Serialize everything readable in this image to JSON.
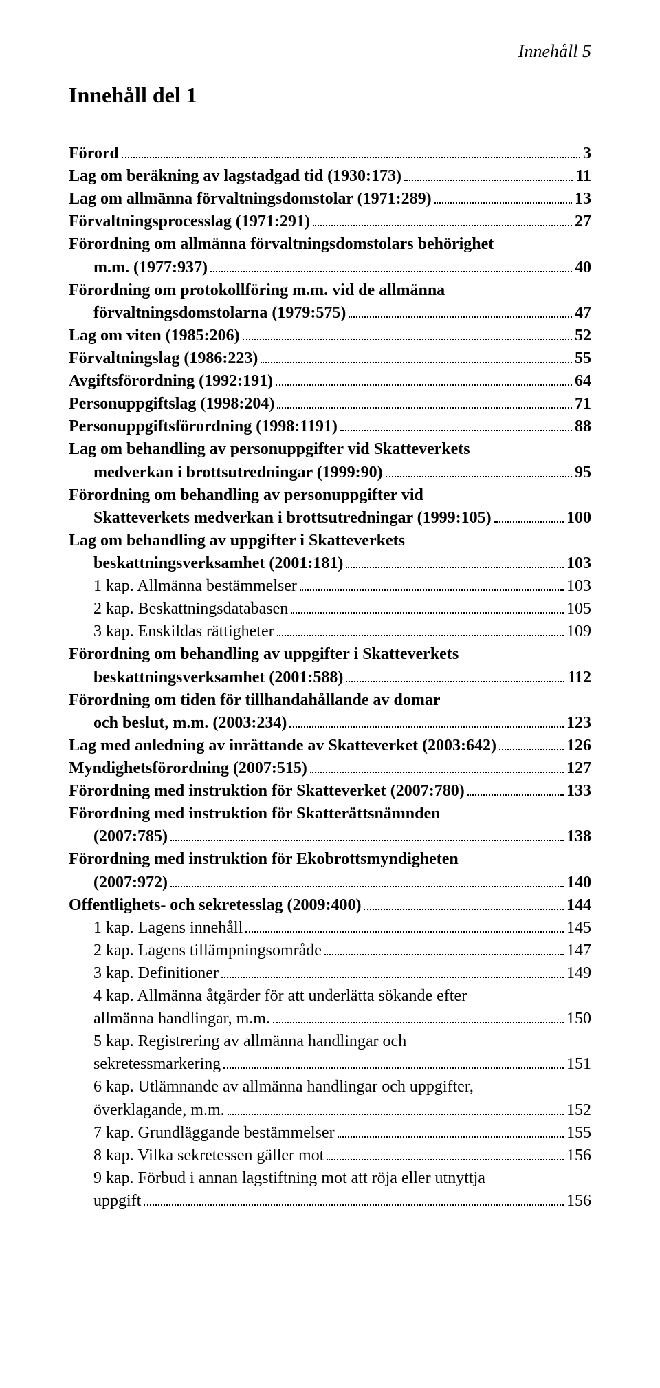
{
  "header": "Innehåll 5",
  "title": "Innehåll del 1",
  "entries": [
    {
      "label": "Förord",
      "page": "3",
      "bold": true,
      "indent": 0
    },
    {
      "label": "Lag om beräkning av lagstadgad tid (1930:173)",
      "page": "11",
      "bold": true,
      "indent": 0
    },
    {
      "label": "Lag om allmänna förvaltningsdomstolar (1971:289)",
      "page": "13",
      "bold": true,
      "indent": 0
    },
    {
      "label": "Förvaltningsprocesslag (1971:291)",
      "page": "27",
      "bold": true,
      "indent": 0
    },
    {
      "label_lines": [
        "Förordning om allmänna förvaltningsdomstolars behörighet",
        "m.m. (1977:937)"
      ],
      "page": "40",
      "bold": true,
      "indent": 0
    },
    {
      "label_lines": [
        "Förordning om protokollföring m.m. vid de allmänna",
        "förvaltningsdomstolarna (1979:575)"
      ],
      "page": "47",
      "bold": true,
      "indent": 0
    },
    {
      "label": "Lag om viten (1985:206)",
      "page": "52",
      "bold": true,
      "indent": 0
    },
    {
      "label": "Förvaltningslag (1986:223)",
      "page": "55",
      "bold": true,
      "indent": 0
    },
    {
      "label": "Avgiftsförordning (1992:191)",
      "page": "64",
      "bold": true,
      "indent": 0
    },
    {
      "label": "Personuppgiftslag (1998:204)",
      "page": "71",
      "bold": true,
      "indent": 0
    },
    {
      "label": "Personuppgiftsförordning (1998:1191)",
      "page": "88",
      "bold": true,
      "indent": 0
    },
    {
      "label_lines": [
        "Lag om behandling av personuppgifter vid Skatteverkets",
        "medverkan i brottsutredningar (1999:90)"
      ],
      "page": "95",
      "bold": true,
      "indent": 0
    },
    {
      "label_lines": [
        "Förordning om behandling av personuppgifter vid",
        "Skatteverkets medverkan i brottsutredningar (1999:105)"
      ],
      "page": "100",
      "bold": true,
      "indent": 0
    },
    {
      "label_lines": [
        "Lag om behandling av uppgifter i Skatteverkets",
        "beskattningsverksamhet (2001:181)"
      ],
      "page": "103",
      "bold": true,
      "indent": 0
    },
    {
      "label": "1 kap. Allmänna bestämmelser",
      "page": "103",
      "bold": false,
      "indent": 1
    },
    {
      "label": "2 kap. Beskattningsdatabasen",
      "page": "105",
      "bold": false,
      "indent": 1
    },
    {
      "label": "3 kap. Enskildas rättigheter",
      "page": "109",
      "bold": false,
      "indent": 1
    },
    {
      "label_lines": [
        "Förordning om behandling av uppgifter i Skatteverkets",
        "beskattningsverksamhet (2001:588)"
      ],
      "page": "112",
      "bold": true,
      "indent": 0
    },
    {
      "label_lines": [
        "Förordning om tiden för tillhandahållande av domar",
        "och beslut, m.m. (2003:234)"
      ],
      "page": "123",
      "bold": true,
      "indent": 0
    },
    {
      "label": "Lag med anledning av inrättande av Skatteverket (2003:642)",
      "page": "126",
      "bold": true,
      "indent": 0
    },
    {
      "label": "Myndighetsförordning (2007:515)",
      "page": "127",
      "bold": true,
      "indent": 0
    },
    {
      "label": "Förordning med instruktion för Skatteverket (2007:780)",
      "page": "133",
      "bold": true,
      "indent": 0
    },
    {
      "label_lines": [
        "Förordning med instruktion för Skatterättsnämnden",
        "(2007:785)"
      ],
      "page": "138",
      "bold": true,
      "indent": 0
    },
    {
      "label_lines": [
        "Förordning med instruktion för Ekobrottsmyndigheten",
        "(2007:972)"
      ],
      "page": "140",
      "bold": true,
      "indent": 0
    },
    {
      "label": "Offentlighets- och sekretesslag (2009:400)",
      "page": "144",
      "bold": true,
      "indent": 0
    },
    {
      "label": "1 kap. Lagens innehåll",
      "page": "145",
      "bold": false,
      "indent": 1
    },
    {
      "label": "2 kap. Lagens tillämpningsområde",
      "page": "147",
      "bold": false,
      "indent": 1
    },
    {
      "label": "3 kap. Definitioner",
      "page": "149",
      "bold": false,
      "indent": 1
    },
    {
      "label_lines": [
        "4 kap. Allmänna åtgärder för att underlätta sökande efter",
        "allmänna handlingar, m.m."
      ],
      "page": "150",
      "bold": false,
      "indent": 1,
      "hanging": true
    },
    {
      "label_lines": [
        "5 kap. Registrering av allmänna handlingar och",
        "sekretessmarkering"
      ],
      "page": "151",
      "bold": false,
      "indent": 1,
      "hanging": true
    },
    {
      "label_lines": [
        "6 kap. Utlämnande av allmänna handlingar och uppgifter,",
        "överklagande, m.m."
      ],
      "page": "152",
      "bold": false,
      "indent": 1,
      "hanging": true
    },
    {
      "label": "7 kap. Grundläggande bestämmelser",
      "page": "155",
      "bold": false,
      "indent": 1
    },
    {
      "label": "8 kap. Vilka sekretessen gäller mot",
      "page": "156",
      "bold": false,
      "indent": 1
    },
    {
      "label_lines": [
        "9 kap. Förbud i annan lagstiftning mot att röja eller utnyttja",
        "uppgift"
      ],
      "page": "156",
      "bold": false,
      "indent": 1,
      "hanging": true
    }
  ]
}
